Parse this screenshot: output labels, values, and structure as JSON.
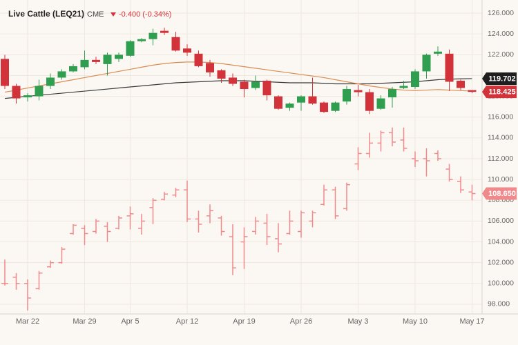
{
  "chart_data": {
    "type": "candlestick",
    "title": "Live Cattle (LEQ21)",
    "exchange": "CME",
    "change": "-0.400 (-0.34%)",
    "categories": [
      null,
      null,
      "Mar 22",
      null,
      null,
      null,
      null,
      "Mar 29",
      null,
      null,
      null,
      "Apr 5",
      null,
      null,
      null,
      null,
      "Apr 12",
      null,
      null,
      null,
      null,
      "Apr 19",
      null,
      null,
      null,
      null,
      "Apr 26",
      null,
      null,
      null,
      null,
      "May 3",
      null,
      null,
      null,
      null,
      "May 10",
      null,
      null,
      null,
      null,
      "May 17"
    ],
    "ylim": [
      97.4,
      126.6
    ],
    "yticks": [
      {
        "value": 98,
        "label": "98.000"
      },
      {
        "value": 100,
        "label": "100.000"
      },
      {
        "value": 102,
        "label": "102.000"
      },
      {
        "value": 104,
        "label": "104.000"
      },
      {
        "value": 106,
        "label": "106.000"
      },
      {
        "value": 108,
        "label": "108.000"
      },
      {
        "value": 110,
        "label": "110.000"
      },
      {
        "value": 112,
        "label": "112.000"
      },
      {
        "value": 114,
        "label": "114.000"
      },
      {
        "value": 116,
        "label": "116.000"
      },
      {
        "value": 118,
        "label": "118.000"
      },
      {
        "value": 120,
        "label": "120.000"
      },
      {
        "value": 122,
        "label": "122.000"
      },
      {
        "value": 124,
        "label": "124.000"
      },
      {
        "value": 126,
        "label": "126.000"
      }
    ],
    "grid": true,
    "series": [
      {
        "type": "candlestick",
        "up_color": "#2f9e4f",
        "down_color": "#d2333b",
        "open": [
          121.6,
          119.0,
          117.9,
          118.0,
          119.0,
          119.8,
          120.4,
          120.8,
          121.5,
          121.1,
          121.6,
          121.9,
          123.3,
          123.5,
          124.3,
          123.7,
          122.6,
          122.1,
          121.2,
          120.5,
          119.8,
          119.4,
          118.8,
          119.5,
          118.0,
          116.9,
          117.4,
          118.0,
          117.4,
          116.6,
          117.5,
          118.6,
          118.4,
          116.8,
          117.9,
          118.8,
          118.9,
          120.4,
          122.1,
          122.1,
          119.5,
          118.6
        ],
        "high": [
          122.0,
          119.2,
          118.3,
          119.6,
          120.2,
          120.6,
          121.1,
          122.4,
          121.8,
          122.2,
          122.2,
          123.4,
          123.6,
          124.5,
          124.6,
          124.2,
          123.0,
          122.4,
          121.5,
          120.6,
          120.2,
          119.6,
          120.0,
          119.6,
          118.1,
          117.4,
          118.1,
          119.8,
          117.5,
          117.5,
          119.0,
          119.1,
          118.7,
          118.1,
          118.9,
          119.5,
          120.6,
          122.1,
          122.8,
          122.5,
          119.6,
          118.6
        ],
        "low": [
          118.7,
          117.3,
          117.5,
          117.6,
          118.7,
          119.6,
          120.3,
          120.6,
          121.1,
          120.0,
          121.3,
          121.8,
          123.2,
          122.9,
          123.9,
          122.3,
          121.9,
          120.8,
          119.9,
          119.3,
          119.0,
          117.9,
          118.6,
          117.6,
          116.7,
          116.6,
          116.6,
          117.2,
          116.4,
          116.5,
          117.2,
          118.0,
          116.3,
          116.7,
          116.9,
          118.7,
          118.7,
          119.7,
          121.9,
          118.5,
          118.6,
          118.3
        ],
        "close": [
          119.0,
          117.8,
          118.1,
          119.0,
          119.8,
          120.4,
          120.9,
          121.5,
          121.3,
          122.0,
          122.0,
          123.3,
          123.5,
          124.1,
          124.1,
          122.4,
          122.2,
          120.9,
          120.3,
          119.7,
          119.2,
          118.7,
          119.4,
          118.1,
          116.8,
          117.3,
          118.0,
          117.3,
          116.5,
          117.4,
          118.7,
          118.4,
          116.6,
          117.8,
          118.7,
          119.0,
          120.4,
          122.0,
          122.3,
          119.4,
          118.8,
          118.425
        ]
      },
      {
        "type": "ohlc",
        "color": "#f0898b",
        "open": [
          100.0,
          100.6,
          100.0,
          99.5,
          101.6,
          102.0,
          104.8,
          105.3,
          105.0,
          105.5,
          105.3,
          106.5,
          105.3,
          107.3,
          108.1,
          108.5,
          109.0,
          106.2,
          106.5,
          106.3,
          104.5,
          104.0,
          105.0,
          105.8,
          104.3,
          104.8,
          105.0,
          106.0,
          107.6,
          109.0,
          107.2,
          111.5,
          112.5,
          113.5,
          114.5,
          113.8,
          112.0,
          112.0,
          112.5,
          111.0,
          109.8,
          108.8
        ],
        "high": [
          102.3,
          101.0,
          100.4,
          101.2,
          102.2,
          103.5,
          105.7,
          105.6,
          106.2,
          105.9,
          106.5,
          107.4,
          106.7,
          108.2,
          108.8,
          109.2,
          109.9,
          107.0,
          107.6,
          106.5,
          105.7,
          105.4,
          106.4,
          106.7,
          105.8,
          107.0,
          107.0,
          107.0,
          109.5,
          109.3,
          109.7,
          113.1,
          114.5,
          114.7,
          115.0,
          115.0,
          112.7,
          113.0,
          112.8,
          111.5,
          110.3,
          109.5
        ],
        "low": [
          99.8,
          99.4,
          97.4,
          99.4,
          101.5,
          101.9,
          104.7,
          103.7,
          104.8,
          104.0,
          105.2,
          105.2,
          104.7,
          105.7,
          108.0,
          108.3,
          105.9,
          104.9,
          105.8,
          104.6,
          100.8,
          101.4,
          104.7,
          103.7,
          103.0,
          104.7,
          104.4,
          105.4,
          107.5,
          106.2,
          107.0,
          110.9,
          112.1,
          112.7,
          113.2,
          112.7,
          111.2,
          110.3,
          111.8,
          109.8,
          108.7,
          108.0
        ],
        "close": [
          100.0,
          100.0,
          98.6,
          101.0,
          102.0,
          103.3,
          105.6,
          104.8,
          106.0,
          105.0,
          106.3,
          106.7,
          106.0,
          108.0,
          108.6,
          109.0,
          106.2,
          105.7,
          107.0,
          105.0,
          101.5,
          104.5,
          106.0,
          104.5,
          103.8,
          106.0,
          106.8,
          106.8,
          109.0,
          106.5,
          109.5,
          112.5,
          113.5,
          114.5,
          113.6,
          113.0,
          111.8,
          111.8,
          112.0,
          110.0,
          109.0,
          108.65
        ]
      },
      {
        "type": "line",
        "color": "#3a3a3a",
        "values": [
          117.8,
          117.9,
          118.0,
          118.1,
          118.2,
          118.3,
          118.4,
          118.5,
          118.6,
          118.7,
          118.8,
          118.9,
          119.0,
          119.1,
          119.2,
          119.3,
          119.35,
          119.4,
          119.45,
          119.5,
          119.5,
          119.5,
          119.45,
          119.4,
          119.35,
          119.3,
          119.3,
          119.3,
          119.25,
          119.2,
          119.2,
          119.2,
          119.2,
          119.25,
          119.3,
          119.35,
          119.4,
          119.5,
          119.6,
          119.65,
          119.68,
          119.702
        ]
      },
      {
        "type": "line",
        "color": "#d98c52",
        "values": [
          118.4,
          118.6,
          118.8,
          119.0,
          119.2,
          119.4,
          119.6,
          119.8,
          120.0,
          120.2,
          120.4,
          120.6,
          120.8,
          121.0,
          121.15,
          121.25,
          121.3,
          121.3,
          121.25,
          121.15,
          121.0,
          120.85,
          120.7,
          120.55,
          120.4,
          120.25,
          120.1,
          119.95,
          119.8,
          119.6,
          119.4,
          119.2,
          119.0,
          118.85,
          118.7,
          118.6,
          118.55,
          118.6,
          118.65,
          118.6,
          118.55,
          118.5
        ]
      }
    ],
    "price_tags": [
      {
        "value": 119.702,
        "label": "119.702",
        "color": "#1e1e1e"
      },
      {
        "value": 118.425,
        "label": "118.425",
        "color": "#d2333b"
      },
      {
        "value": 108.65,
        "label": "108.650",
        "color": "#f0898b"
      }
    ]
  }
}
